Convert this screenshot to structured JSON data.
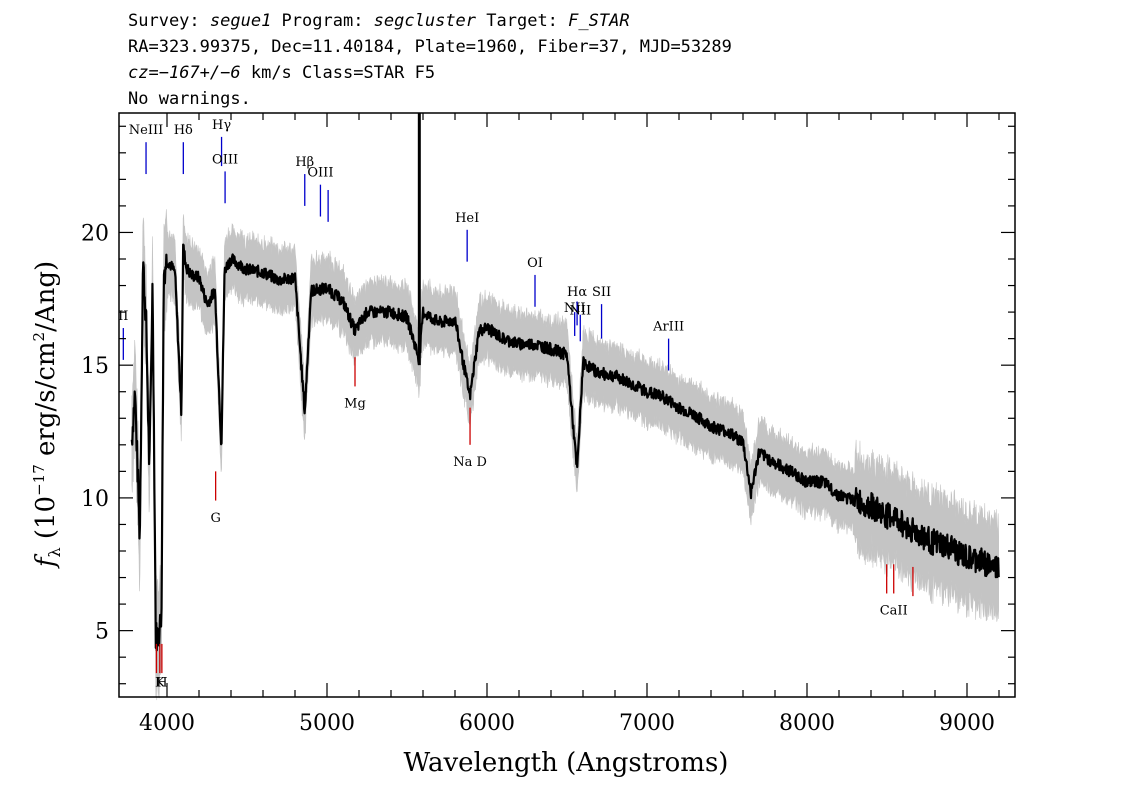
{
  "header": {
    "line1": {
      "survey_label": "Survey: ",
      "survey": "segue1",
      "program_label": " Program: ",
      "program": "segcluster",
      "target_label": " Target: ",
      "target": "F_STAR"
    },
    "line2": "RA=323.99375, Dec=11.40184, Plate=1960, Fiber=37, MJD=53289",
    "line3": {
      "cz_label": "cz=",
      "cz": "−167+/−6",
      "rest": " km/s Class=STAR F5"
    },
    "line4": "No warnings."
  },
  "chart_data": {
    "type": "line",
    "title": "",
    "xlabel": "Wavelength (Angstroms)",
    "ylabel": {
      "f": "f",
      "sub": "λ",
      "text": " (10",
      "exp": "−17",
      "text2": " erg/s/cm",
      "exp2": "2",
      "text3": "/Ang)"
    },
    "xlim": [
      3700,
      9300
    ],
    "ylim": [
      2.5,
      24.5
    ],
    "xticks": [
      4000,
      5000,
      6000,
      7000,
      8000,
      9000
    ],
    "yticks": [
      5,
      10,
      15,
      20
    ],
    "series": [
      {
        "color": "#000000",
        "x": [
          3780,
          3800,
          3830,
          3850,
          3870,
          3890,
          3910,
          3930,
          3950,
          3965,
          3980,
          4000,
          4050,
          4090,
          4101,
          4120,
          4150,
          4200,
          4250,
          4300,
          4340,
          4360,
          4400,
          4500,
          4600,
          4700,
          4800,
          4861,
          4900,
          5000,
          5100,
          5175,
          5250,
          5400,
          5500,
          5577,
          5600,
          5700,
          5800,
          5893,
          5950,
          6000,
          6100,
          6200,
          6300,
          6400,
          6500,
          6563,
          6600,
          6700,
          6800,
          6900,
          7000,
          7100,
          7200,
          7300,
          7400,
          7500,
          7600,
          7650,
          7700,
          7800,
          7900,
          8000,
          8100,
          8200,
          8300,
          8400,
          8498,
          8542,
          8600,
          8662,
          8700,
          8800,
          8900,
          9000,
          9100,
          9200
        ],
        "y": [
          12.2,
          14.0,
          8.5,
          19.0,
          16.5,
          11.0,
          18.2,
          4.8,
          4.9,
          5.5,
          18.5,
          19.0,
          18.5,
          13.2,
          19.5,
          18.7,
          18.4,
          18.3,
          17.3,
          17.8,
          11.9,
          18.6,
          19.0,
          18.6,
          18.5,
          18.2,
          18.3,
          13.2,
          17.8,
          17.9,
          17.4,
          16.3,
          17.0,
          17.0,
          16.8,
          15.2,
          17.0,
          16.6,
          16.7,
          13.8,
          16.3,
          16.4,
          16.0,
          15.8,
          15.8,
          15.6,
          15.4,
          11.0,
          15.1,
          14.7,
          14.6,
          14.3,
          14.0,
          13.8,
          13.4,
          13.1,
          12.7,
          12.5,
          12.1,
          10.2,
          11.7,
          11.3,
          11.0,
          10.6,
          10.6,
          10.1,
          9.9,
          9.7,
          9.3,
          9.3,
          9.0,
          8.8,
          8.6,
          8.3,
          8.1,
          7.7,
          7.6,
          7.3
        ]
      }
    ],
    "emission_lines": [
      {
        "label": "NeIII",
        "x": 3869,
        "y0": 22.2,
        "y1": 23.4,
        "label_y": 23.7
      },
      {
        "label": "Hδ",
        "x": 4102,
        "y0": 22.2,
        "y1": 23.4,
        "label_y": 23.7
      },
      {
        "label": "Hγ",
        "x": 4341,
        "y0": 22.5,
        "y1": 23.6,
        "label_y": 23.9
      },
      {
        "label": "OIII",
        "x": 4363,
        "y0": 21.1,
        "y1": 22.3,
        "label_y": 22.6
      },
      {
        "label": "Hβ",
        "x": 4861,
        "y0": 21.0,
        "y1": 22.2,
        "label_y": 22.5
      },
      {
        "label": "OIII",
        "x": 4959,
        "y0": 20.6,
        "y1": 21.8,
        "label_y": 22.1
      },
      {
        "label": "",
        "x": 5007,
        "y0": 20.4,
        "y1": 21.6,
        "label_y": 0
      },
      {
        "label": "HeI",
        "x": 5876,
        "y0": 18.9,
        "y1": 20.1,
        "label_y": 20.4
      },
      {
        "label": "OI",
        "x": 6300,
        "y0": 17.2,
        "y1": 18.4,
        "label_y": 18.7
      },
      {
        "label": "NII",
        "x": 6548,
        "y0": 16.1,
        "y1": 17.0,
        "label_y": 17.0
      },
      {
        "label": "Hα",
        "x": 6563,
        "y0": 16.5,
        "y1": 17.4,
        "label_y": 17.6
      },
      {
        "label": "NII",
        "x": 6583,
        "y0": 15.9,
        "y1": 16.9,
        "label_y": 16.9
      },
      {
        "label": "SII",
        "x": 6716,
        "y0": 16.0,
        "y1": 17.3,
        "label_y": 17.6
      },
      {
        "label": "ArIII",
        "x": 7135,
        "y0": 14.8,
        "y1": 16.0,
        "label_y": 16.3
      },
      {
        "label": "II",
        "x": 3727,
        "y0": 15.2,
        "y1": 16.4,
        "label_y": 16.7
      }
    ],
    "absorption_lines": [
      {
        "label": "",
        "x": 3934,
        "y0": 3.4,
        "y1": 4.5,
        "label_y": 0
      },
      {
        "label": "K",
        "x": 3955,
        "y0": 3.4,
        "y1": 4.5,
        "label_y": 2.9
      },
      {
        "label": "H",
        "x": 3968,
        "y0": 3.4,
        "y1": 4.5,
        "label_y": 2.9
      },
      {
        "label": "G",
        "x": 4304,
        "y0": 9.9,
        "y1": 11.0,
        "label_y": 9.1
      },
      {
        "label": "Mg",
        "x": 5175,
        "y0": 14.2,
        "y1": 15.3,
        "label_y": 13.4
      },
      {
        "label": "Na  D",
        "x": 5894,
        "y0": 12.0,
        "y1": 13.4,
        "label_y": 11.2
      },
      {
        "label": "",
        "x": 8498,
        "y0": 6.4,
        "y1": 7.5,
        "label_y": 0
      },
      {
        "label": "CaII",
        "x": 8542,
        "y0": 6.4,
        "y1": 7.5,
        "label_y": 5.6
      },
      {
        "label": "",
        "x": 8662,
        "y0": 6.3,
        "y1": 7.4,
        "label_y": 0
      }
    ],
    "colors": {
      "flux": "#000000",
      "error": "#bebebe",
      "emission": "#0000cc",
      "absorption": "#cc0000"
    }
  }
}
